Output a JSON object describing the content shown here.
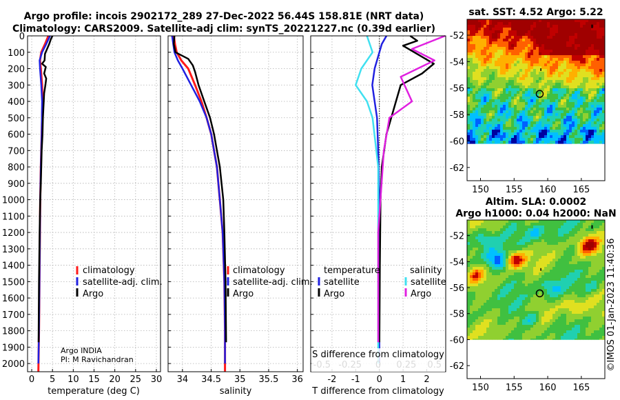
{
  "header": {
    "title_line1": "Argo profile: incois 2902172_289 27-Dec-2022 56.44S 158.81E (NRT data)",
    "title_line2": "Climatology: CARS2009. Satellite-adj clim: synTS_20221227.nc (0.39d earlier)"
  },
  "credit": {
    "institution": "Argo INDIA",
    "pi": "PI: M Ravichandran",
    "footer": "©IMOS 01-Jan-2023 11:40:36"
  },
  "colors": {
    "climatology": "#ff1a1a",
    "satellite": "#2020e0",
    "argo": "#000000",
    "temp_satellite": "#2020e0",
    "sal_satellite": "#40e0f0",
    "sal_argo": "#e020e0"
  },
  "chart_data": [
    {
      "type": "line",
      "name": "temperature-profile",
      "xlabel": "temperature (deg C)",
      "ylabel": "depth",
      "xlim": [
        -1,
        31
      ],
      "ylim": [
        2050,
        0
      ],
      "xticks": [
        0,
        5,
        10,
        15,
        20,
        25,
        30
      ],
      "xtick_labels": [
        "0",
        "5",
        "10",
        "15",
        "20",
        "25",
        "30"
      ],
      "yticks": [
        0,
        100,
        200,
        300,
        400,
        500,
        600,
        700,
        800,
        900,
        1000,
        1100,
        1200,
        1300,
        1400,
        1500,
        1600,
        1700,
        1800,
        1900,
        2000
      ],
      "ytick_labels": [
        "0",
        "100",
        "200",
        "300",
        "400",
        "500",
        "600",
        "700",
        "800",
        "900",
        "1000",
        "1100",
        "1200",
        "1300",
        "1400",
        "1500",
        "1600",
        "1700",
        "1800",
        "1900",
        "2000"
      ],
      "legend": [
        "climatology",
        "satellite-adj. clim.",
        "Argo"
      ],
      "series": [
        {
          "name": "climatology",
          "x": [
            4.0,
            3.2,
            2.3,
            2.0,
            2.2,
            2.5,
            2.6,
            2.5,
            2.4,
            2.3,
            2.2,
            2.05,
            1.9,
            1.75,
            1.6
          ],
          "y": [
            0,
            50,
            100,
            150,
            200,
            300,
            400,
            500,
            600,
            700,
            800,
            1000,
            1400,
            1800,
            2050
          ]
        },
        {
          "name": "satellite",
          "x": [
            4.4,
            3.5,
            2.5,
            1.9,
            2.0,
            2.3,
            2.5,
            2.45,
            2.4,
            2.3,
            2.2,
            2.05,
            1.9,
            1.75,
            1.6
          ],
          "y": [
            0,
            50,
            100,
            150,
            200,
            300,
            400,
            500,
            600,
            700,
            800,
            1000,
            1400,
            1800,
            2000
          ]
        },
        {
          "name": "Argo",
          "x": [
            5.0,
            4.6,
            4.2,
            3.7,
            3.2,
            3.1,
            2.5,
            3.4,
            3.0,
            3.5,
            3.3,
            3.0,
            2.9,
            2.7,
            2.6,
            2.4,
            2.3,
            2.2,
            2.05,
            1.9,
            1.75,
            1.65
          ],
          "y": [
            0,
            20,
            50,
            80,
            110,
            150,
            170,
            190,
            230,
            260,
            300,
            350,
            400,
            500,
            600,
            700,
            800,
            900,
            1000,
            1200,
            1500,
            1870
          ]
        }
      ]
    },
    {
      "type": "line",
      "name": "salinity-profile",
      "xlabel": "salinity",
      "xlim": [
        33.75,
        36.1
      ],
      "ylim": [
        2050,
        0
      ],
      "xticks": [
        34,
        34.5,
        35,
        35.5,
        36
      ],
      "xtick_labels": [
        "34",
        "34.5",
        "35",
        "35.5",
        "36"
      ],
      "legend": [
        "climatology",
        "satellite-adj. clim.",
        "Argo"
      ],
      "series": [
        {
          "name": "climatology",
          "x": [
            33.85,
            33.87,
            33.9,
            33.98,
            34.1,
            34.22,
            34.33,
            34.42,
            34.5,
            34.55,
            34.6,
            34.65,
            34.7,
            34.73,
            34.74,
            34.74
          ],
          "y": [
            0,
            50,
            100,
            150,
            200,
            300,
            400,
            500,
            600,
            700,
            800,
            1000,
            1200,
            1500,
            1800,
            2050
          ]
        },
        {
          "name": "satellite",
          "x": [
            33.82,
            33.84,
            33.86,
            33.92,
            34.0,
            34.15,
            34.3,
            34.42,
            34.5,
            34.55,
            34.6,
            34.65,
            34.7,
            34.73,
            34.74,
            34.74
          ],
          "y": [
            0,
            50,
            100,
            150,
            200,
            300,
            400,
            500,
            600,
            700,
            800,
            1000,
            1200,
            1500,
            1800,
            2000
          ]
        },
        {
          "name": "Argo",
          "x": [
            33.86,
            33.85,
            33.88,
            34.1,
            34.18,
            34.22,
            34.28,
            34.38,
            34.48,
            34.55,
            34.6,
            34.65,
            34.71,
            34.73,
            34.75,
            34.76
          ],
          "y": [
            0,
            50,
            100,
            140,
            180,
            220,
            300,
            400,
            500,
            600,
            700,
            800,
            1000,
            1200,
            1500,
            1870
          ]
        }
      ]
    },
    {
      "type": "line",
      "name": "difference-profile",
      "xlabel": "T difference from climatology",
      "xlabel2": "S difference from climatology",
      "xlim": [
        -2.9,
        2.8
      ],
      "ylim": [
        2050,
        0
      ],
      "xticks": [
        -2,
        -1,
        0,
        1,
        2
      ],
      "xtick_labels": [
        "-2",
        "-1",
        "0",
        "1",
        "2"
      ],
      "xticks2": [
        -0.5,
        -0.25,
        0,
        0.25,
        0.5
      ],
      "xtick_labels2": [
        "-0.5",
        "-0.25",
        "0",
        "0.25",
        "0.5"
      ],
      "legend_headers": [
        "temperature",
        "salinity"
      ],
      "legend": [
        "satellite",
        "Argo",
        "satellite",
        "Argo"
      ],
      "series": [
        {
          "name": "T satellite",
          "x": [
            0.3,
            0.1,
            0.0,
            -0.2,
            -0.3,
            -0.2,
            -0.1,
            -0.05,
            0.0,
            0.0
          ],
          "y": [
            0,
            50,
            100,
            200,
            300,
            400,
            500,
            700,
            1000,
            2000
          ]
        },
        {
          "name": "T Argo",
          "x": [
            1.3,
            1.6,
            1.0,
            2.3,
            1.8,
            0.9,
            0.7,
            0.5,
            0.3,
            0.2,
            0.1,
            0.05,
            0.02,
            0.0
          ],
          "y": [
            0,
            30,
            60,
            170,
            230,
            300,
            400,
            500,
            600,
            700,
            800,
            1000,
            1400,
            1870
          ]
        },
        {
          "name": "S satellite",
          "x": [
            -0.1,
            -0.05,
            -0.15,
            -0.2,
            -0.1,
            -0.05,
            0.0,
            0.0
          ],
          "y": [
            0,
            100,
            200,
            300,
            400,
            500,
            800,
            2000
          ]
        },
        {
          "name": "S Argo",
          "x": [
            0.6,
            0.3,
            0.5,
            0.2,
            0.3,
            0.1,
            0.05,
            0.0,
            0.0
          ],
          "y": [
            0,
            80,
            150,
            250,
            400,
            500,
            700,
            1200,
            1870
          ]
        }
      ]
    },
    {
      "type": "heatmap",
      "name": "sst-map",
      "title": "sat. SST: 4.52 Argo: 5.22",
      "xlim": [
        148,
        168.5
      ],
      "ylim": [
        -63,
        -50.8
      ],
      "xticks": [
        150,
        155,
        160,
        165
      ],
      "xtick_labels": [
        "150",
        "155",
        "160",
        "165"
      ],
      "yticks": [
        -52,
        -54,
        -56,
        -58,
        -60,
        -62
      ],
      "ytick_labels": [
        "-52",
        "-54",
        "-56",
        "-58",
        "-60",
        "-62"
      ],
      "marker": {
        "lon": 158.81,
        "lat": -56.44
      },
      "palette": [
        "#0000a0",
        "#0060ff",
        "#00c0ff",
        "#20d0b0",
        "#40c040",
        "#90d030",
        "#e0e020",
        "#ffb000",
        "#ff6000",
        "#c00000",
        "#a00000"
      ]
    },
    {
      "type": "heatmap",
      "name": "sla-map",
      "title": "Altim. SLA: 0.0002",
      "subtitle": "Argo h1000: 0.04 h2000: NaN",
      "xlim": [
        148,
        168.5
      ],
      "ylim": [
        -63,
        -50.8
      ],
      "xticks": [
        150,
        155,
        160,
        165
      ],
      "xtick_labels": [
        "150",
        "155",
        "160",
        "165"
      ],
      "yticks": [
        -52,
        -54,
        -56,
        -58,
        -60,
        -62
      ],
      "ytick_labels": [
        "-52",
        "-54",
        "-56",
        "-58",
        "-60",
        "-62"
      ],
      "marker": {
        "lon": 158.81,
        "lat": -56.44
      },
      "palette": [
        "#0000a0",
        "#0060ff",
        "#00c0ff",
        "#20d0b0",
        "#40c040",
        "#90d030",
        "#e0e020",
        "#ffb000",
        "#ff6000",
        "#c00000",
        "#a00000"
      ]
    }
  ]
}
